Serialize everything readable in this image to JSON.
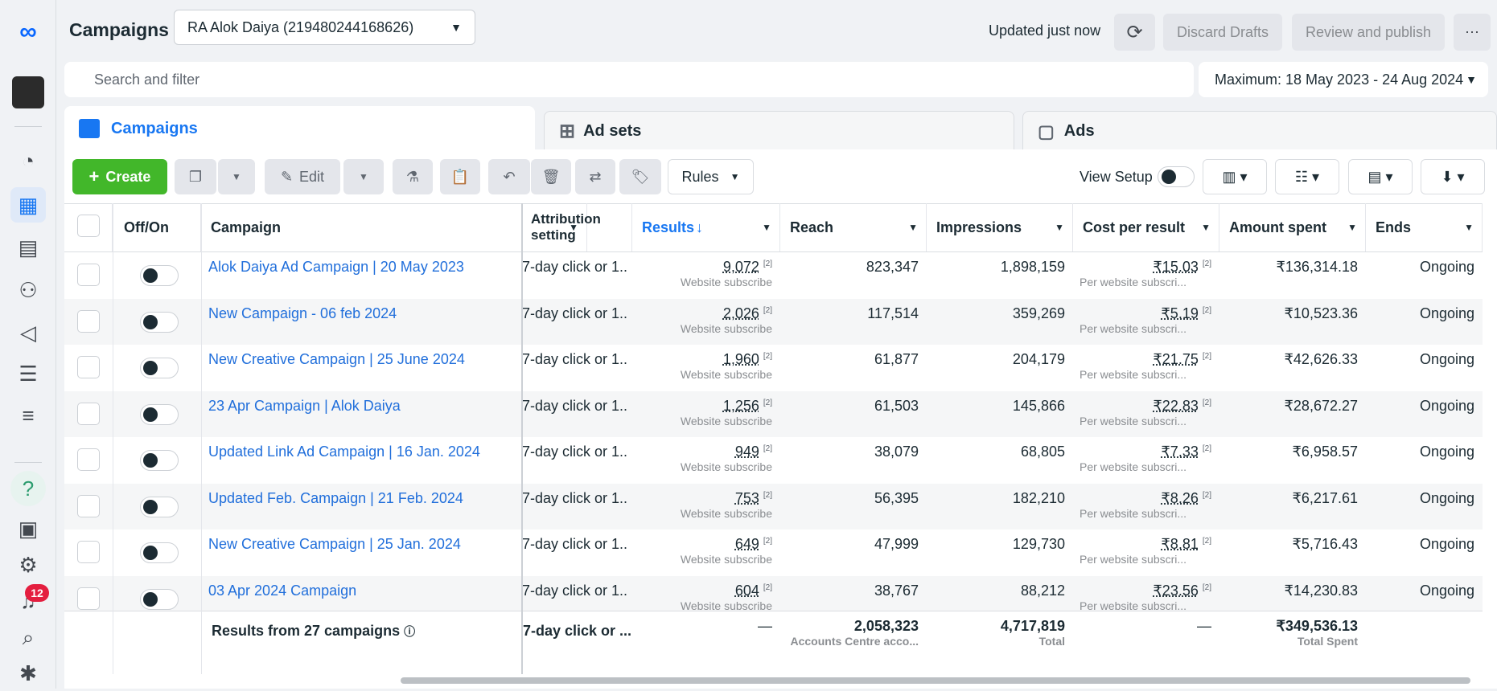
{
  "nav": {
    "notification_count": "12"
  },
  "header": {
    "title": "Campaigns",
    "account": "RA Alok Daiya (219480244168626)",
    "updated": "Updated just now",
    "discard": "Discard Drafts",
    "publish": "Review and publish"
  },
  "search": {
    "placeholder": "Search and filter"
  },
  "date_range": "Maximum: 18 May 2023 - 24 Aug 2024",
  "tabs": {
    "campaigns": "Campaigns",
    "adsets": "Ad sets",
    "ads": "Ads"
  },
  "toolbar": {
    "create": "Create",
    "edit": "Edit",
    "rules": "Rules",
    "view_setup": "View Setup"
  },
  "columns": {
    "offon": "Off/On",
    "campaign": "Campaign",
    "attribution": "Attribution setting",
    "results": "Results",
    "reach": "Reach",
    "impressions": "Impressions",
    "cpr": "Cost per result",
    "spent": "Amount spent",
    "ends": "Ends"
  },
  "rows": [
    {
      "name": "Alok Daiya Ad Campaign | 20 May 2023",
      "attr": "7-day click or 1...",
      "results": "9,072",
      "results_sub": "Website subscribe",
      "reach": "823,347",
      "impr": "1,898,159",
      "cpr": "₹15.03",
      "cpr_sub": "Per website subscri...",
      "spent": "₹136,314.18",
      "ends": "Ongoing"
    },
    {
      "name": "New Campaign - 06 feb 2024",
      "attr": "7-day click or 1...",
      "results": "2,026",
      "results_sub": "Website subscribe",
      "reach": "117,514",
      "impr": "359,269",
      "cpr": "₹5.19",
      "cpr_sub": "Per website subscri...",
      "spent": "₹10,523.36",
      "ends": "Ongoing"
    },
    {
      "name": "New Creative Campaign | 25 June 2024",
      "attr": "7-day click or 1...",
      "results": "1,960",
      "results_sub": "Website subscribe",
      "reach": "61,877",
      "impr": "204,179",
      "cpr": "₹21.75",
      "cpr_sub": "Per website subscri...",
      "spent": "₹42,626.33",
      "ends": "Ongoing"
    },
    {
      "name": "23 Apr Campaign | Alok Daiya",
      "attr": "7-day click or 1...",
      "results": "1,256",
      "results_sub": "Website subscribe",
      "reach": "61,503",
      "impr": "145,866",
      "cpr": "₹22.83",
      "cpr_sub": "Per website subscri...",
      "spent": "₹28,672.27",
      "ends": "Ongoing"
    },
    {
      "name": "Updated Link Ad Campaign | 16 Jan. 2024",
      "attr": "7-day click or 1...",
      "results": "949",
      "results_sub": "Website subscribe",
      "reach": "38,079",
      "impr": "68,805",
      "cpr": "₹7.33",
      "cpr_sub": "Per website subscri...",
      "spent": "₹6,958.57",
      "ends": "Ongoing"
    },
    {
      "name": "Updated Feb. Campaign | 21 Feb. 2024",
      "attr": "7-day click or 1...",
      "results": "753",
      "results_sub": "Website subscribe",
      "reach": "56,395",
      "impr": "182,210",
      "cpr": "₹8.26",
      "cpr_sub": "Per website subscri...",
      "spent": "₹6,217.61",
      "ends": "Ongoing"
    },
    {
      "name": "New Creative Campaign | 25 Jan. 2024",
      "attr": "7-day click or 1...",
      "results": "649",
      "results_sub": "Website subscribe",
      "reach": "47,999",
      "impr": "129,730",
      "cpr": "₹8.81",
      "cpr_sub": "Per website subscri...",
      "spent": "₹5,716.43",
      "ends": "Ongoing"
    },
    {
      "name": "03 Apr 2024 Campaign",
      "attr": "7-day click or 1...",
      "results": "604",
      "results_sub": "Website subscribe",
      "reach": "38,767",
      "impr": "88,212",
      "cpr": "₹23.56",
      "cpr_sub": "Per website subscri...",
      "spent": "₹14,230.83",
      "ends": "Ongoing"
    }
  ],
  "footer": {
    "label": "Results from 27 campaigns",
    "attr": "7-day click or ...",
    "results": "—",
    "reach": "2,058,323",
    "reach_sub": "Accounts Centre acco...",
    "impr": "4,717,819",
    "impr_sub": "Total",
    "cpr": "—",
    "spent": "₹349,536.13",
    "spent_sub": "Total Spent"
  },
  "colors": {
    "accent": "#1877f2",
    "create": "#42b72a",
    "link": "#216fdb"
  }
}
